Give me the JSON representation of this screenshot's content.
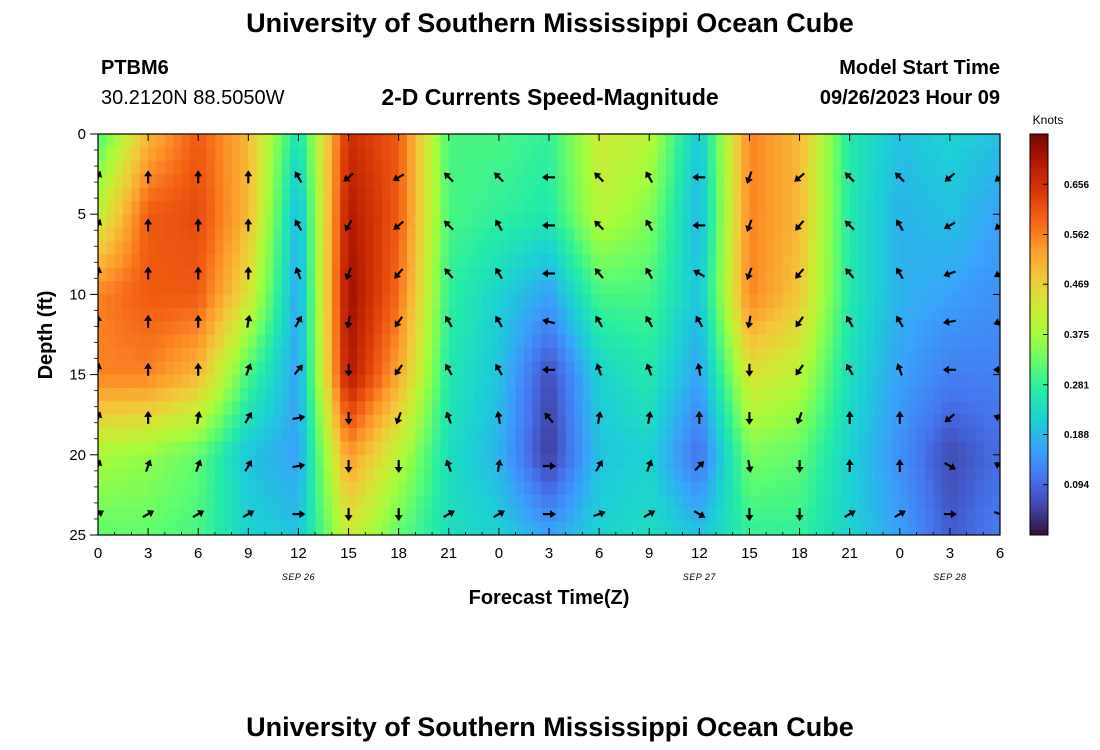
{
  "page": {
    "title": "University of Southern Mississippi Ocean Cube",
    "footer_title": "University of Southern Mississippi Ocean Cube"
  },
  "station": {
    "id": "PTBM6",
    "coords": "30.2120N  88.5050W"
  },
  "model": {
    "start_label": "Model Start Time",
    "start_value": "09/26/2023 Hour 09"
  },
  "chart_data": {
    "type": "heatmap",
    "title": "2-D Currents Speed-Magnitude",
    "xlabel": "Forecast Time(Z)",
    "ylabel": "Depth (ft)",
    "x_ticks": [
      "0",
      "3",
      "6",
      "9",
      "12",
      "15",
      "18",
      "21",
      "0",
      "3",
      "6",
      "9",
      "12",
      "15",
      "18",
      "21",
      "0",
      "3",
      "6"
    ],
    "x_range_hours": [
      0,
      54
    ],
    "date_labels": [
      {
        "text": "SEP 26",
        "hour": 12
      },
      {
        "text": "SEP 27",
        "hour": 36
      },
      {
        "text": "SEP 28",
        "hour": 51
      }
    ],
    "y_ticks": [
      0,
      5,
      10,
      15,
      20,
      25
    ],
    "ylim": [
      0,
      25
    ],
    "colorbar": {
      "label": "Knots",
      "ticks": [
        "0.094",
        "0.188",
        "0.281",
        "0.375",
        "0.469",
        "0.562",
        "0.656"
      ],
      "range": [
        0.0,
        0.75
      ],
      "colors": [
        "#30123b",
        "#4145ab",
        "#4675ed",
        "#39a2fc",
        "#1bcfd4",
        "#24eca6",
        "#61fc6c",
        "#a4fc3b",
        "#d1e834",
        "#f3c63a",
        "#fe9b2d",
        "#f36315",
        "#d93806",
        "#b11901",
        "#7a0403"
      ]
    },
    "time_hours": [
      0,
      3,
      6,
      9,
      12,
      15,
      18,
      21,
      24,
      27,
      30,
      33,
      36,
      39,
      42,
      45,
      48,
      51,
      54
    ],
    "depths_ft": [
      0,
      5,
      10,
      15,
      20,
      25
    ],
    "speed_knots": [
      [
        0.3,
        0.5,
        0.6,
        0.5,
        0.24,
        0.66,
        0.6,
        0.3,
        0.3,
        0.28,
        0.42,
        0.4,
        0.2,
        0.56,
        0.5,
        0.26,
        0.2,
        0.22,
        0.2
      ],
      [
        0.4,
        0.6,
        0.62,
        0.5,
        0.18,
        0.7,
        0.6,
        0.3,
        0.28,
        0.26,
        0.4,
        0.35,
        0.18,
        0.56,
        0.5,
        0.26,
        0.18,
        0.2,
        0.16
      ],
      [
        0.56,
        0.6,
        0.6,
        0.44,
        0.16,
        0.72,
        0.58,
        0.28,
        0.22,
        0.16,
        0.3,
        0.3,
        0.2,
        0.56,
        0.48,
        0.26,
        0.18,
        0.16,
        0.14
      ],
      [
        0.56,
        0.56,
        0.5,
        0.3,
        0.16,
        0.7,
        0.52,
        0.26,
        0.2,
        0.06,
        0.22,
        0.26,
        0.16,
        0.44,
        0.4,
        0.24,
        0.16,
        0.12,
        0.12
      ],
      [
        0.38,
        0.36,
        0.32,
        0.2,
        0.16,
        0.54,
        0.4,
        0.24,
        0.18,
        0.04,
        0.2,
        0.22,
        0.1,
        0.34,
        0.32,
        0.22,
        0.14,
        0.06,
        0.1
      ],
      [
        0.32,
        0.32,
        0.3,
        0.22,
        0.2,
        0.42,
        0.32,
        0.24,
        0.22,
        0.16,
        0.22,
        0.24,
        0.2,
        0.28,
        0.28,
        0.22,
        0.16,
        0.08,
        0.12
      ]
    ],
    "arrow_depths_ft": [
      2.7,
      5.7,
      8.7,
      11.7,
      14.7,
      17.7,
      20.7,
      23.7
    ],
    "arrow_hours": [
      0,
      3,
      6,
      9,
      12,
      15,
      18,
      21,
      24,
      27,
      30,
      33,
      36,
      39,
      42,
      45,
      48,
      51,
      54
    ],
    "arrow_direction_deg": [
      [
        20,
        0,
        0,
        0,
        330,
        230,
        240,
        315,
        315,
        270,
        315,
        330,
        270,
        200,
        230,
        315,
        315,
        230,
        230
      ],
      [
        20,
        0,
        0,
        0,
        330,
        210,
        230,
        315,
        330,
        270,
        315,
        330,
        270,
        200,
        220,
        315,
        330,
        240,
        230
      ],
      [
        10,
        0,
        0,
        0,
        340,
        200,
        220,
        320,
        330,
        270,
        320,
        330,
        300,
        200,
        220,
        320,
        330,
        250,
        240
      ],
      [
        0,
        0,
        0,
        10,
        30,
        190,
        215,
        330,
        330,
        285,
        330,
        330,
        330,
        190,
        215,
        330,
        330,
        260,
        250
      ],
      [
        10,
        0,
        0,
        20,
        40,
        180,
        215,
        330,
        330,
        270,
        340,
        340,
        350,
        180,
        215,
        330,
        340,
        270,
        270
      ],
      [
        20,
        0,
        10,
        30,
        80,
        180,
        200,
        340,
        350,
        320,
        10,
        10,
        0,
        180,
        200,
        0,
        0,
        230,
        290
      ],
      [
        20,
        20,
        20,
        30,
        80,
        180,
        180,
        340,
        10,
        90,
        30,
        20,
        45,
        170,
        180,
        0,
        0,
        120,
        300
      ],
      [
        60,
        60,
        60,
        60,
        90,
        180,
        180,
        60,
        60,
        90,
        70,
        60,
        120,
        180,
        180,
        60,
        60,
        90,
        110
      ]
    ]
  }
}
